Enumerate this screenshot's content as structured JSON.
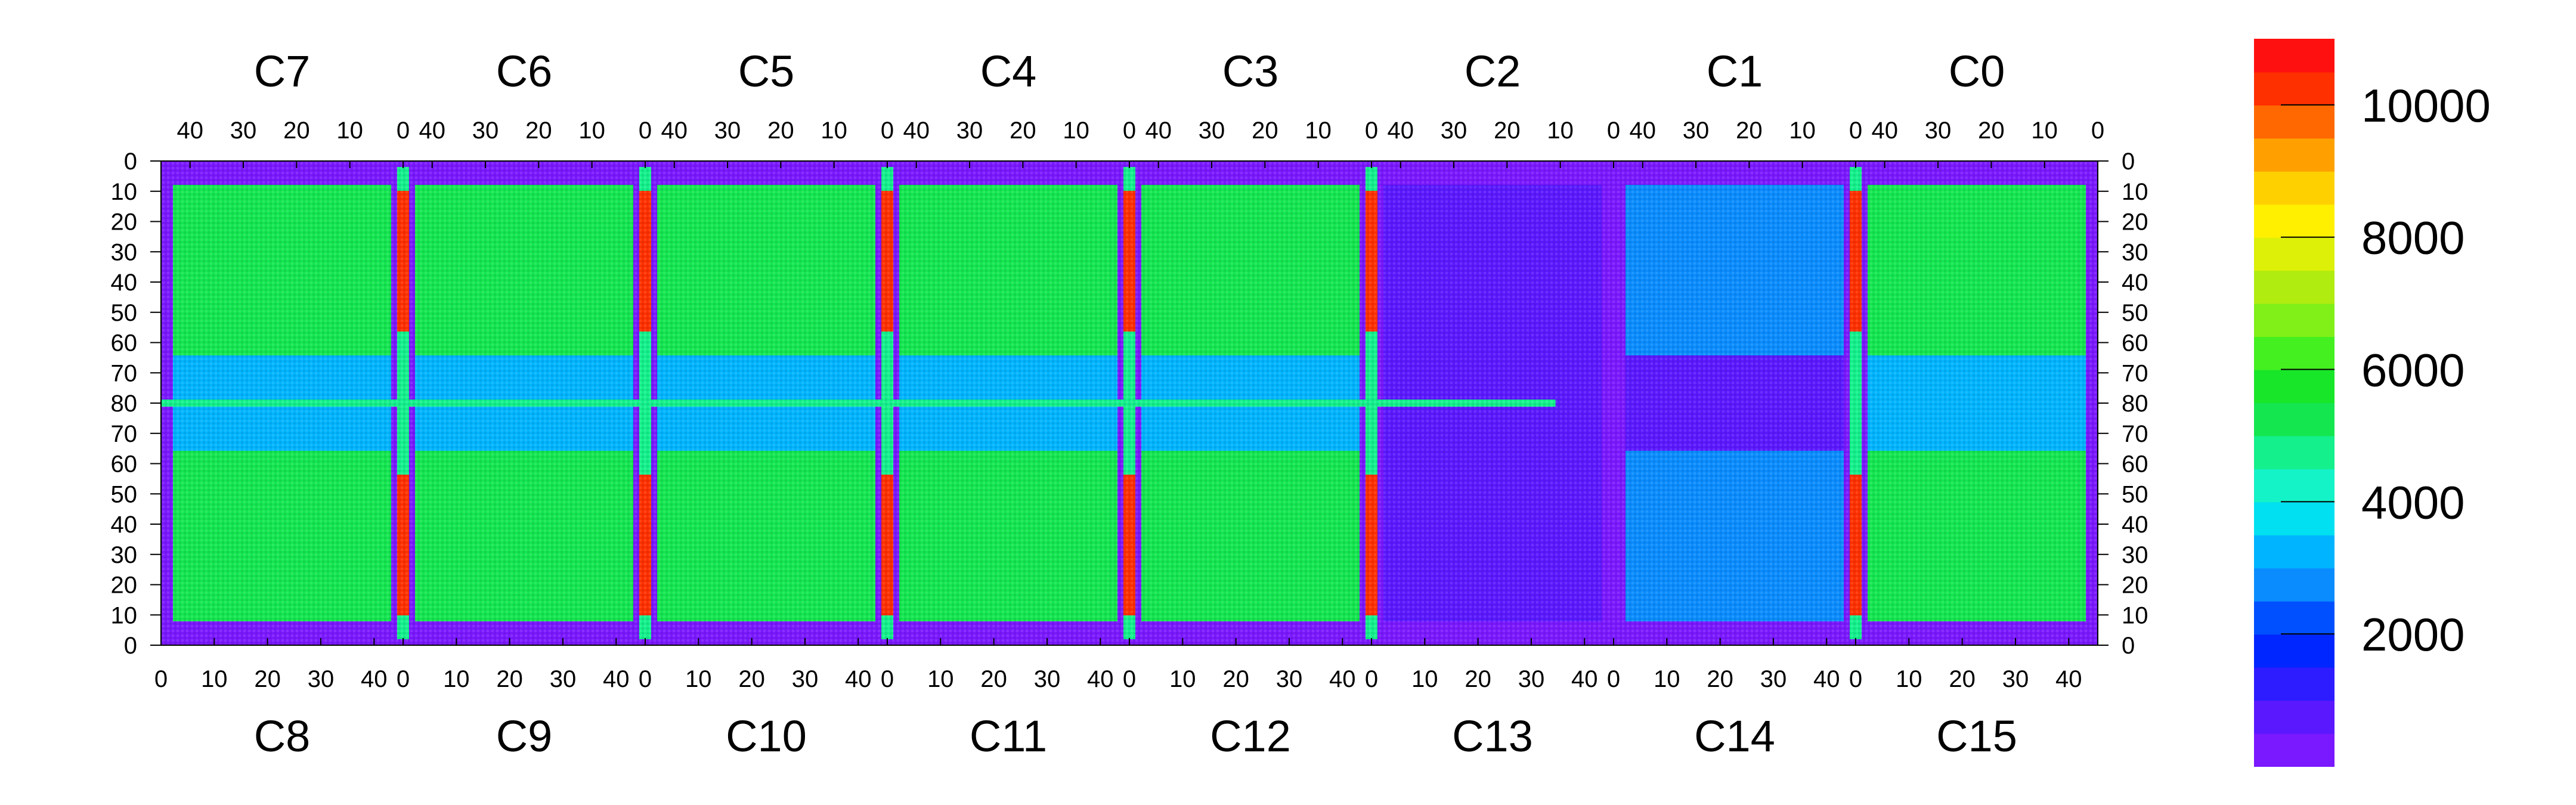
{
  "chart_data": {
    "type": "heatmap",
    "title": "",
    "xlabel": "",
    "ylabel": "",
    "chips_top": [
      "C7",
      "C6",
      "C5",
      "C4",
      "C3",
      "C2",
      "C1",
      "C0"
    ],
    "chips_bottom": [
      "C8",
      "C9",
      "C10",
      "C11",
      "C12",
      "C13",
      "C14",
      "C15"
    ],
    "top_x_ticks": [
      "40",
      "30",
      "20",
      "10",
      "0"
    ],
    "bottom_x_ticks": [
      "0",
      "10",
      "20",
      "30",
      "40"
    ],
    "y_ticks": [
      "0",
      "10",
      "20",
      "30",
      "40",
      "50",
      "60",
      "70",
      "80",
      "70",
      "60",
      "50",
      "40",
      "30",
      "20",
      "10",
      "0"
    ],
    "colorbar": {
      "min": 0,
      "max": 11000,
      "tick_values": [
        2000,
        4000,
        6000,
        8000,
        10000
      ],
      "tick_labels": [
        "2000",
        "4000",
        "6000",
        "8000",
        "10000"
      ],
      "colors": [
        "#7a18ff",
        "#5a18ff",
        "#2c1cff",
        "#0026ff",
        "#0050ff",
        "#0a8cff",
        "#00b4ff",
        "#00e0f0",
        "#14f2c8",
        "#14f08c",
        "#14e650",
        "#18e628",
        "#44f020",
        "#80f018",
        "#b0ec10",
        "#dcf008",
        "#fff000",
        "#ffd000",
        "#ffa000",
        "#ff6800",
        "#ff3000",
        "#ff1010"
      ]
    },
    "bands": [
      {
        "name": "columns-top",
        "value": 5200
      },
      {
        "name": "columns-bottom",
        "value": 5000
      },
      {
        "name": "middle-row",
        "value": 3000
      },
      {
        "name": "chip-edges",
        "value": 10000
      },
      {
        "name": "c13-c14-region",
        "value": 400
      }
    ]
  }
}
